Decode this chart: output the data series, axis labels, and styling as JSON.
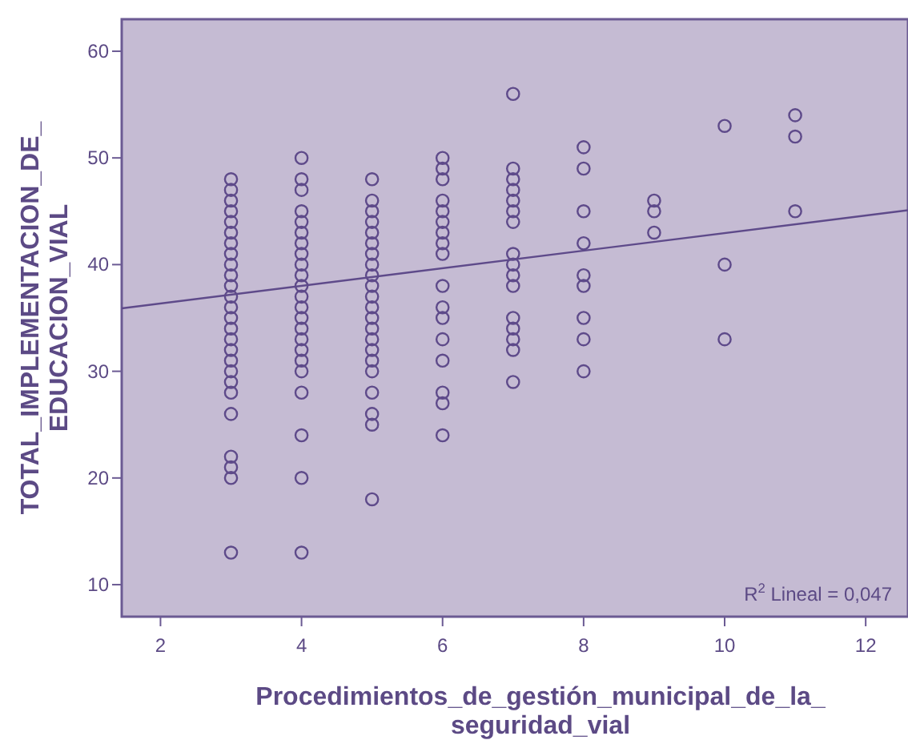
{
  "chart_data": {
    "type": "scatter",
    "xlabel": "Procedimientos_de_gestión_municipal_de_la_\nseguridad_vial",
    "ylabel": "TOTAL_IMPLEMENTACION_DE_\nEDUCACION_VIAL",
    "xlim": [
      1.45,
      12.6
    ],
    "ylim": [
      7,
      63
    ],
    "xticks": [
      2,
      4,
      6,
      8,
      10,
      12
    ],
    "yticks": [
      10,
      20,
      30,
      40,
      50,
      60
    ],
    "grid": false,
    "marker": "circle",
    "annotations": [
      "R$^{2}$ Lineal = 0,047"
    ],
    "series": [
      {
        "color": "#5e4a8a",
        "x": [
          3,
          3,
          3,
          3,
          3,
          3,
          3,
          3,
          3,
          3,
          3,
          3,
          3,
          3,
          3,
          3,
          3,
          3,
          3,
          3,
          3,
          3,
          3,
          3,
          3,
          3,
          4,
          4,
          4,
          4,
          4,
          4,
          4,
          4,
          4,
          4,
          4,
          4,
          4,
          4,
          4,
          4,
          4,
          4,
          4,
          4,
          4,
          4,
          4,
          5,
          5,
          5,
          5,
          5,
          5,
          5,
          5,
          5,
          5,
          5,
          5,
          5,
          5,
          5,
          5,
          5,
          5,
          5,
          5,
          5,
          5,
          6,
          6,
          6,
          6,
          6,
          6,
          6,
          6,
          6,
          6,
          6,
          6,
          6,
          6,
          6,
          6,
          6,
          7,
          7,
          7,
          7,
          7,
          7,
          7,
          7,
          7,
          7,
          7,
          7,
          7,
          7,
          7,
          7,
          8,
          8,
          8,
          8,
          8,
          8,
          8,
          8,
          8,
          9,
          9,
          9,
          10,
          10,
          10,
          11,
          11,
          11
        ],
        "values": [
          13,
          20,
          21,
          22,
          26,
          28,
          29,
          30,
          31,
          32,
          33,
          34,
          35,
          36,
          37,
          38,
          39,
          40,
          41,
          42,
          43,
          44,
          45,
          46,
          47,
          48,
          13,
          20,
          24,
          28,
          30,
          31,
          32,
          33,
          34,
          35,
          36,
          37,
          38,
          39,
          40,
          41,
          42,
          43,
          44,
          45,
          47,
          48,
          50,
          18,
          25,
          26,
          28,
          30,
          31,
          32,
          33,
          34,
          35,
          36,
          37,
          38,
          39,
          40,
          41,
          42,
          43,
          44,
          45,
          46,
          48,
          24,
          27,
          28,
          31,
          33,
          35,
          36,
          38,
          41,
          42,
          43,
          44,
          45,
          46,
          48,
          49,
          50,
          29,
          32,
          33,
          34,
          35,
          38,
          39,
          40,
          41,
          44,
          45,
          46,
          47,
          48,
          49,
          56,
          30,
          33,
          35,
          38,
          39,
          42,
          45,
          49,
          51,
          43,
          45,
          46,
          33,
          40,
          53,
          45,
          52,
          54
        ]
      },
      {
        "type": "line",
        "color": "#5e4a8a",
        "marker": "none",
        "x": [
          1.45,
          12.6
        ],
        "values": [
          35.9,
          45.1
        ]
      }
    ]
  }
}
